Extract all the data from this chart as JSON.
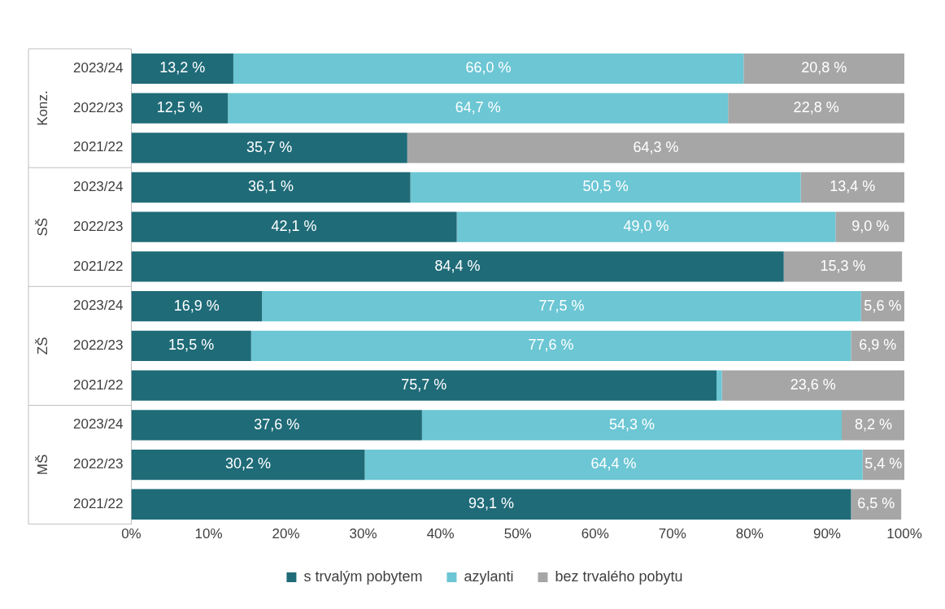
{
  "chart_data": {
    "type": "bar",
    "orientation": "horizontal",
    "stacked": true,
    "categories": [
      "2023/24",
      "2022/23",
      "2021/22",
      "2023/24",
      "2022/23",
      "2021/22",
      "2023/24",
      "2022/23",
      "2021/22",
      "2023/24",
      "2022/23",
      "2021/22"
    ],
    "annotations": [
      "Konz.",
      "SŠ",
      "ZŠ",
      "MŠ"
    ],
    "series": [
      {
        "name": "s trvalým pobytem",
        "color": "#1f6b78",
        "values": [
          13.2,
          12.5,
          35.7,
          36.1,
          42.1,
          84.4,
          16.9,
          15.5,
          75.7,
          37.6,
          30.2,
          93.1
        ],
        "value_labels": [
          "13,2 %",
          "12,5 %",
          "35,7 %",
          "36,1 %",
          "42,1 %",
          "84,4 %",
          "16,9 %",
          "15,5 %",
          "75,7 %",
          "37,6 %",
          "30,2 %",
          "93,1 %"
        ]
      },
      {
        "name": "azylanti",
        "color": "#6cc6d4",
        "values": [
          66.0,
          64.7,
          null,
          50.5,
          49.0,
          null,
          77.5,
          77.6,
          0.7,
          54.3,
          64.4,
          null
        ],
        "value_labels": [
          "66,0 %",
          "64,7 %",
          null,
          "50,5 %",
          "49,0 %",
          null,
          "77,5 %",
          "77,6 %",
          null,
          "54,3 %",
          "64,4 %",
          null
        ]
      },
      {
        "name": "bez trvalého pobytu",
        "color": "#a6a6a6",
        "values": [
          20.8,
          22.8,
          64.3,
          13.4,
          9.0,
          15.3,
          5.6,
          6.9,
          23.6,
          8.2,
          5.4,
          6.5
        ],
        "value_labels": [
          "20,8 %",
          "22,8 %",
          "64,3 %",
          "13,4 %",
          "9,0 %",
          "15,3 %",
          "5,6 %",
          "6,9 %",
          "23,6 %",
          "8,2 %",
          "5,4 %",
          "6,5 %"
        ]
      }
    ],
    "xlim": [
      0,
      100
    ],
    "xticks": [
      {
        "value": 0,
        "label": "0%"
      },
      {
        "value": 10,
        "label": "10%"
      },
      {
        "value": 20,
        "label": "20%"
      },
      {
        "value": 30,
        "label": "30%"
      },
      {
        "value": 40,
        "label": "40%"
      },
      {
        "value": 50,
        "label": "50%"
      },
      {
        "value": 60,
        "label": "60%"
      },
      {
        "value": 70,
        "label": "70%"
      },
      {
        "value": 80,
        "label": "80%"
      },
      {
        "value": 90,
        "label": "90%"
      },
      {
        "value": 100,
        "label": "100%"
      }
    ],
    "grid": false,
    "legend": "bottom"
  }
}
